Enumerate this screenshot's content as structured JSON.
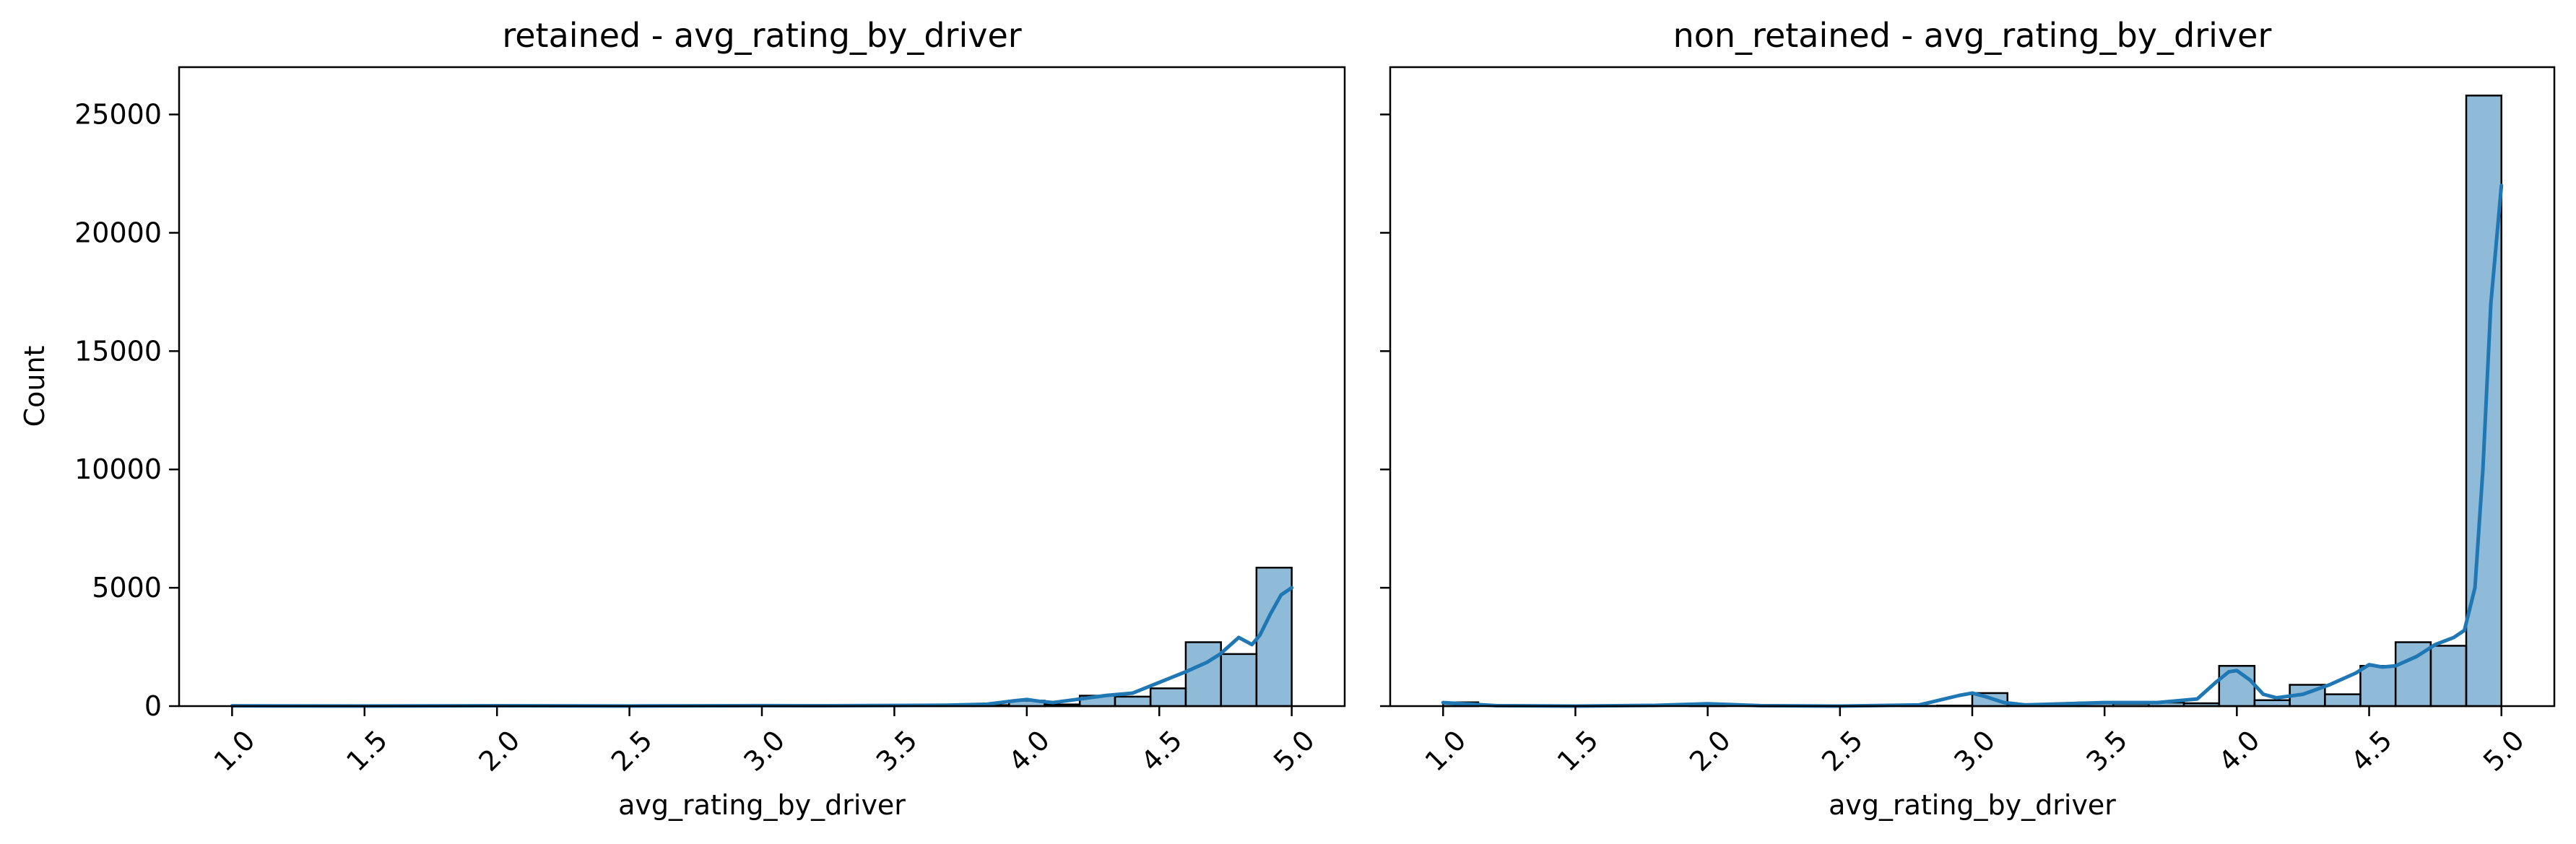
{
  "chart_data": [
    {
      "type": "bar",
      "title": "retained - avg_rating_by_driver",
      "xlabel": "avg_rating_by_driver",
      "ylabel": "Count",
      "xlim": [
        0.8,
        5.2
      ],
      "ylim": [
        0,
        27000
      ],
      "xticks": [
        1.0,
        1.5,
        2.0,
        2.5,
        3.0,
        3.5,
        4.0,
        4.5,
        5.0
      ],
      "xtick_labels": [
        "1.0",
        "1.5",
        "2.0",
        "2.5",
        "3.0",
        "3.5",
        "4.0",
        "4.5",
        "5.0"
      ],
      "yticks": [
        0,
        5000,
        10000,
        15000,
        20000,
        25000
      ],
      "ytick_labels": [
        "0",
        "5000",
        "10000",
        "15000",
        "20000",
        "25000"
      ],
      "bin_start": 1.0,
      "bin_width": 0.1333,
      "bins": [
        {
          "x0": 1.0,
          "x1": 1.133,
          "count": 10
        },
        {
          "x0": 1.133,
          "x1": 1.267,
          "count": 0
        },
        {
          "x0": 1.267,
          "x1": 1.4,
          "count": 0
        },
        {
          "x0": 1.4,
          "x1": 1.533,
          "count": 0
        },
        {
          "x0": 1.533,
          "x1": 1.667,
          "count": 0
        },
        {
          "x0": 1.667,
          "x1": 1.8,
          "count": 0
        },
        {
          "x0": 1.8,
          "x1": 1.933,
          "count": 0
        },
        {
          "x0": 1.933,
          "x1": 2.067,
          "count": 10
        },
        {
          "x0": 2.067,
          "x1": 2.2,
          "count": 0
        },
        {
          "x0": 2.2,
          "x1": 2.333,
          "count": 0
        },
        {
          "x0": 2.333,
          "x1": 2.467,
          "count": 0
        },
        {
          "x0": 2.467,
          "x1": 2.6,
          "count": 5
        },
        {
          "x0": 2.6,
          "x1": 2.733,
          "count": 0
        },
        {
          "x0": 2.733,
          "x1": 2.867,
          "count": 0
        },
        {
          "x0": 2.867,
          "x1": 3.0,
          "count": 5
        },
        {
          "x0": 3.0,
          "x1": 3.133,
          "count": 30
        },
        {
          "x0": 3.133,
          "x1": 3.267,
          "count": 5
        },
        {
          "x0": 3.267,
          "x1": 3.4,
          "count": 10
        },
        {
          "x0": 3.4,
          "x1": 3.533,
          "count": 15
        },
        {
          "x0": 3.533,
          "x1": 3.667,
          "count": 20
        },
        {
          "x0": 3.667,
          "x1": 3.8,
          "count": 40
        },
        {
          "x0": 3.8,
          "x1": 3.933,
          "count": 40
        },
        {
          "x0": 3.933,
          "x1": 4.067,
          "count": 230
        },
        {
          "x0": 4.067,
          "x1": 4.2,
          "count": 70
        },
        {
          "x0": 4.2,
          "x1": 4.333,
          "count": 440
        },
        {
          "x0": 4.333,
          "x1": 4.467,
          "count": 400
        },
        {
          "x0": 4.467,
          "x1": 4.6,
          "count": 750
        },
        {
          "x0": 4.6,
          "x1": 4.733,
          "count": 2700
        },
        {
          "x0": 4.733,
          "x1": 4.867,
          "count": 2200
        },
        {
          "x0": 4.867,
          "x1": 5.0,
          "count": 5850
        }
      ],
      "kde": {
        "x": [
          1.0,
          1.5,
          2.0,
          2.5,
          3.0,
          3.2,
          3.5,
          3.7,
          3.85,
          3.95,
          4.0,
          4.05,
          4.1,
          4.2,
          4.3,
          4.4,
          4.5,
          4.6,
          4.68,
          4.73,
          4.8,
          4.85,
          4.88,
          4.92,
          4.96,
          5.0
        ],
        "y": [
          10,
          5,
          15,
          5,
          20,
          15,
          25,
          40,
          80,
          220,
          280,
          200,
          150,
          300,
          450,
          550,
          1000,
          1450,
          1850,
          2200,
          2900,
          2600,
          3000,
          3900,
          4700,
          5000
        ]
      }
    },
    {
      "type": "bar",
      "title": "non_retained - avg_rating_by_driver",
      "xlabel": "avg_rating_by_driver",
      "ylabel": "",
      "xlim": [
        0.8,
        5.2
      ],
      "ylim": [
        0,
        27000
      ],
      "xticks": [
        1.0,
        1.5,
        2.0,
        2.5,
        3.0,
        3.5,
        4.0,
        4.5,
        5.0
      ],
      "xtick_labels": [
        "1.0",
        "1.5",
        "2.0",
        "2.5",
        "3.0",
        "3.5",
        "4.0",
        "4.5",
        "5.0"
      ],
      "yticks": [
        0,
        5000,
        10000,
        15000,
        20000,
        25000
      ],
      "bin_start": 1.0,
      "bin_width": 0.1333,
      "bins": [
        {
          "x0": 1.0,
          "x1": 1.133,
          "count": 160
        },
        {
          "x0": 1.133,
          "x1": 1.267,
          "count": 0
        },
        {
          "x0": 1.267,
          "x1": 1.4,
          "count": 0
        },
        {
          "x0": 1.4,
          "x1": 1.533,
          "count": 0
        },
        {
          "x0": 1.533,
          "x1": 1.667,
          "count": 0
        },
        {
          "x0": 1.667,
          "x1": 1.8,
          "count": 0
        },
        {
          "x0": 1.8,
          "x1": 1.933,
          "count": 0
        },
        {
          "x0": 1.933,
          "x1": 2.067,
          "count": 80
        },
        {
          "x0": 2.067,
          "x1": 2.2,
          "count": 0
        },
        {
          "x0": 2.2,
          "x1": 2.333,
          "count": 0
        },
        {
          "x0": 2.333,
          "x1": 2.467,
          "count": 0
        },
        {
          "x0": 2.467,
          "x1": 2.6,
          "count": 30
        },
        {
          "x0": 2.6,
          "x1": 2.733,
          "count": 0
        },
        {
          "x0": 2.733,
          "x1": 2.867,
          "count": 10
        },
        {
          "x0": 2.867,
          "x1": 3.0,
          "count": 20
        },
        {
          "x0": 3.0,
          "x1": 3.133,
          "count": 550
        },
        {
          "x0": 3.133,
          "x1": 3.267,
          "count": 30
        },
        {
          "x0": 3.267,
          "x1": 3.4,
          "count": 60
        },
        {
          "x0": 3.4,
          "x1": 3.533,
          "count": 150
        },
        {
          "x0": 3.533,
          "x1": 3.667,
          "count": 100
        },
        {
          "x0": 3.667,
          "x1": 3.8,
          "count": 150
        },
        {
          "x0": 3.8,
          "x1": 3.933,
          "count": 120
        },
        {
          "x0": 3.933,
          "x1": 4.067,
          "count": 1700
        },
        {
          "x0": 4.067,
          "x1": 4.2,
          "count": 250
        },
        {
          "x0": 4.2,
          "x1": 4.333,
          "count": 900
        },
        {
          "x0": 4.333,
          "x1": 4.467,
          "count": 500
        },
        {
          "x0": 4.467,
          "x1": 4.6,
          "count": 1700
        },
        {
          "x0": 4.6,
          "x1": 4.733,
          "count": 2700
        },
        {
          "x0": 4.733,
          "x1": 4.867,
          "count": 2550
        },
        {
          "x0": 4.867,
          "x1": 5.0,
          "count": 25800
        }
      ],
      "kde": {
        "x": [
          1.0,
          1.2,
          1.5,
          1.8,
          2.0,
          2.2,
          2.5,
          2.8,
          2.95,
          3.0,
          3.05,
          3.12,
          3.2,
          3.5,
          3.7,
          3.85,
          3.92,
          3.97,
          4.0,
          4.05,
          4.1,
          4.15,
          4.25,
          4.35,
          4.45,
          4.5,
          4.55,
          4.6,
          4.68,
          4.75,
          4.82,
          4.86,
          4.9,
          4.93,
          4.96,
          5.0
        ],
        "y": [
          150,
          20,
          0,
          30,
          100,
          20,
          0,
          50,
          450,
          550,
          400,
          150,
          50,
          150,
          150,
          300,
          1000,
          1450,
          1500,
          1100,
          500,
          350,
          500,
          900,
          1400,
          1750,
          1650,
          1700,
          2100,
          2600,
          2900,
          3200,
          5000,
          10000,
          17000,
          22000
        ]
      }
    }
  ]
}
